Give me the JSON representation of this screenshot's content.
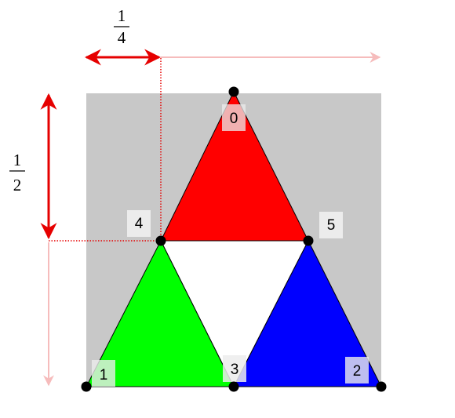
{
  "annotations": {
    "width_fraction": {
      "numerator": "1",
      "denominator": "4"
    },
    "height_fraction": {
      "numerator": "1",
      "denominator": "2"
    }
  },
  "vertices": [
    "0",
    "1",
    "2",
    "3",
    "4",
    "5"
  ],
  "colors": {
    "background_square": "#c8c8c8",
    "top_triangle": "#ff0000",
    "left_triangle": "#00ff00",
    "right_triangle": "#0000ff",
    "center_triangle": "#ffffff",
    "arrow_strong": "#e60000",
    "arrow_faded": "#f6bcbc",
    "vertex_dot": "#000000",
    "label_box": "#ececec"
  }
}
